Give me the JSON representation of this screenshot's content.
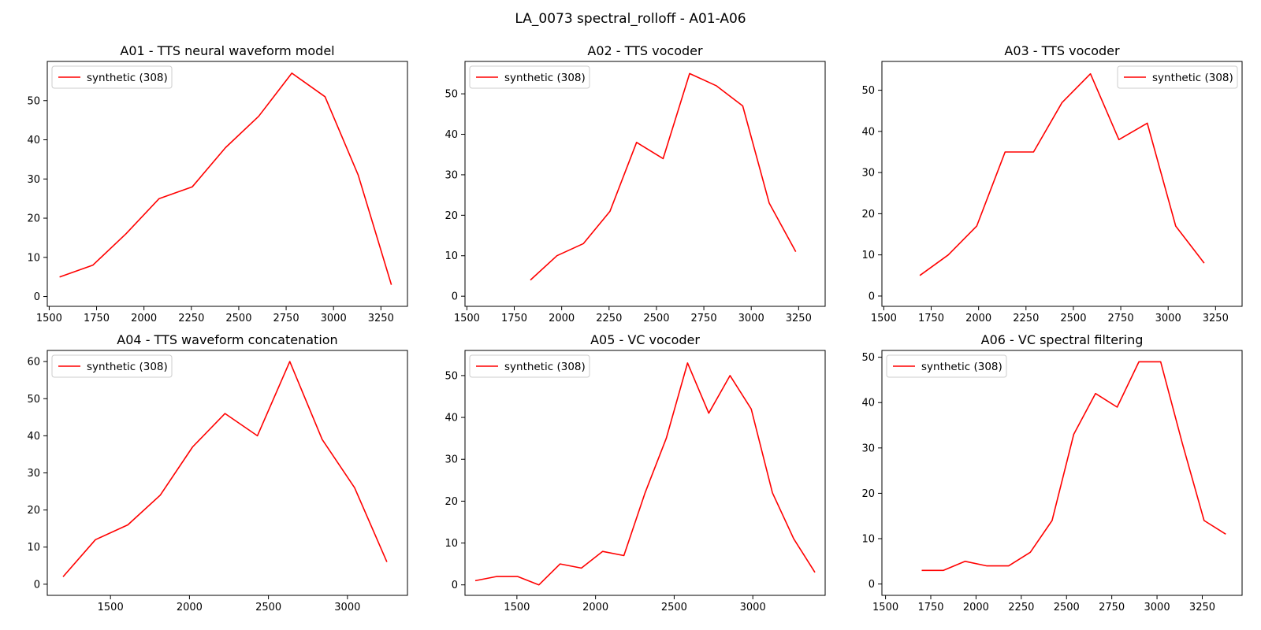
{
  "suptitle": "LA_0073 spectral_rolloff - A01-A06",
  "line_color": "#ff0000",
  "chart_data": [
    {
      "type": "line",
      "title": "A01 - TTS neural waveform model",
      "xlabel": "",
      "ylabel": "",
      "legend_position": "upper left",
      "xlim": [
        1490,
        3390
      ],
      "ylim": [
        -2.5,
        60
      ],
      "xticks": [
        1500,
        1750,
        2000,
        2250,
        2500,
        2750,
        3000,
        3250
      ],
      "yticks": [
        0,
        10,
        20,
        30,
        40,
        50
      ],
      "series": [
        {
          "name": "synthetic (308)",
          "x": [
            1555,
            1730,
            1905,
            2080,
            2255,
            2430,
            2605,
            2780,
            2955,
            3130,
            3305
          ],
          "y": [
            5,
            8,
            16,
            25,
            28,
            38,
            46,
            57,
            51,
            31,
            3
          ]
        }
      ]
    },
    {
      "type": "line",
      "title": "A02 - TTS vocoder",
      "xlabel": "",
      "ylabel": "",
      "legend_position": "upper left",
      "xlim": [
        1490,
        3390
      ],
      "ylim": [
        -2.5,
        58
      ],
      "xticks": [
        1500,
        1750,
        2000,
        2250,
        2500,
        2750,
        3000,
        3250
      ],
      "yticks": [
        0,
        10,
        20,
        30,
        40,
        50
      ],
      "series": [
        {
          "name": "synthetic (308)",
          "x": [
            1835,
            1975,
            2115,
            2255,
            2395,
            2535,
            2675,
            2815,
            2955,
            3095,
            3235
          ],
          "y": [
            4,
            10,
            13,
            21,
            38,
            34,
            55,
            52,
            47,
            23,
            11
          ]
        }
      ]
    },
    {
      "type": "line",
      "title": "A03 - TTS vocoder",
      "xlabel": "",
      "ylabel": "",
      "legend_position": "upper right",
      "xlim": [
        1490,
        3390
      ],
      "ylim": [
        -2.5,
        57
      ],
      "xticks": [
        1500,
        1750,
        2000,
        2250,
        2500,
        2750,
        3000,
        3250
      ],
      "yticks": [
        0,
        10,
        20,
        30,
        40,
        50
      ],
      "series": [
        {
          "name": "synthetic (308)",
          "x": [
            1690,
            1840,
            1990,
            2140,
            2290,
            2440,
            2590,
            2740,
            2890,
            3040,
            3190
          ],
          "y": [
            5,
            10,
            17,
            35,
            35,
            47,
            54,
            38,
            42,
            17,
            8
          ]
        }
      ]
    },
    {
      "type": "line",
      "title": "A04 - TTS waveform concatenation",
      "xlabel": "",
      "ylabel": "",
      "legend_position": "upper left",
      "xlim": [
        1100,
        3380
      ],
      "ylim": [
        -3,
        63
      ],
      "xticks": [
        1500,
        2000,
        2500,
        3000
      ],
      "yticks": [
        0,
        10,
        20,
        30,
        40,
        50,
        60
      ],
      "series": [
        {
          "name": "synthetic (308)",
          "x": [
            1200,
            1405,
            1610,
            1815,
            2020,
            2225,
            2430,
            2635,
            2840,
            3045,
            3250
          ],
          "y": [
            2,
            12,
            16,
            24,
            37,
            46,
            40,
            60,
            39,
            26,
            6
          ]
        }
      ]
    },
    {
      "type": "line",
      "title": "A05 - VC vocoder",
      "xlabel": "",
      "ylabel": "",
      "legend_position": "upper left",
      "xlim": [
        1170,
        3460
      ],
      "ylim": [
        -2.5,
        56
      ],
      "xticks": [
        1500,
        2000,
        2500,
        3000
      ],
      "yticks": [
        0,
        10,
        20,
        30,
        40,
        50
      ],
      "series": [
        {
          "name": "synthetic (308)",
          "x": [
            1235,
            1370,
            1505,
            1640,
            1775,
            1910,
            2045,
            2180,
            2315,
            2450,
            2585,
            2720,
            2855,
            2990,
            3125,
            3260,
            3395
          ],
          "y": [
            1,
            2,
            2,
            0,
            5,
            4,
            8,
            7,
            22,
            35,
            53,
            41,
            50,
            42,
            22,
            11,
            3
          ]
        }
      ]
    },
    {
      "type": "line",
      "title": "A06 - VC spectral filtering",
      "xlabel": "",
      "ylabel": "",
      "legend_position": "upper left",
      "xlim": [
        1480,
        3470
      ],
      "ylim": [
        -2.5,
        51.5
      ],
      "xticks": [
        1500,
        1750,
        2000,
        2250,
        2500,
        2750,
        3000,
        3250
      ],
      "yticks": [
        0,
        10,
        20,
        30,
        40,
        50
      ],
      "series": [
        {
          "name": "synthetic (308)",
          "x": [
            1700,
            1820,
            1940,
            2060,
            2180,
            2300,
            2420,
            2540,
            2660,
            2780,
            2900,
            3020,
            3140,
            3260,
            3380
          ],
          "y": [
            3,
            3,
            5,
            4,
            4,
            7,
            14,
            33,
            42,
            39,
            49,
            49,
            31,
            14,
            11
          ]
        }
      ]
    }
  ]
}
